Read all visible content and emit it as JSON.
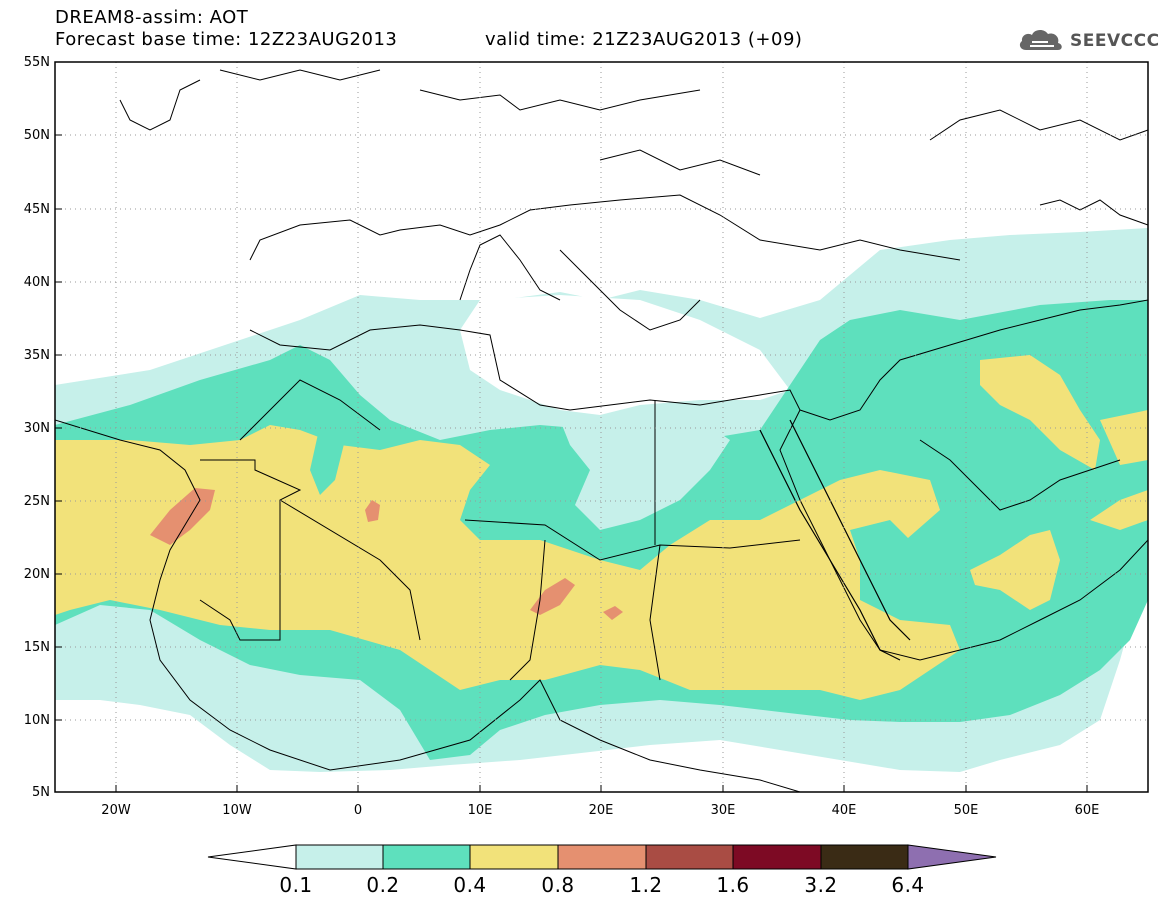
{
  "header": {
    "line1": "DREAM8-assim: AOT",
    "base_time": "Forecast base time: 12Z23AUG2013",
    "valid_time": "valid time: 21Z23AUG2013 (+09)"
  },
  "logo": {
    "text": "SEEVCCC",
    "icon": "cloud-icon"
  },
  "map": {
    "lat_labels": [
      "55N",
      "50N",
      "45N",
      "40N",
      "35N",
      "30N",
      "25N",
      "20N",
      "15N",
      "10N",
      "5N"
    ],
    "lon_labels": [
      "20W",
      "10W",
      "0",
      "10E",
      "20E",
      "30E",
      "40E",
      "50E",
      "60E"
    ],
    "colors": {
      "land_bg": "#ffffff",
      "aot_0_1": "#c6f0ea",
      "aot_0_2": "#5ee0bd",
      "aot_0_4": "#f2e27a",
      "aot_0_8": "#e59070",
      "coastline": "#000000"
    }
  },
  "colorbar": {
    "labels": [
      "0.1",
      "0.2",
      "0.4",
      "0.8",
      "1.2",
      "1.6",
      "3.2",
      "6.4"
    ],
    "colors": [
      "#ffffff",
      "#c6f0ea",
      "#5ee0bd",
      "#f2e27a",
      "#e59070",
      "#a94c44",
      "#7d0a24",
      "#3a2b15",
      "#8e6fb0"
    ]
  }
}
